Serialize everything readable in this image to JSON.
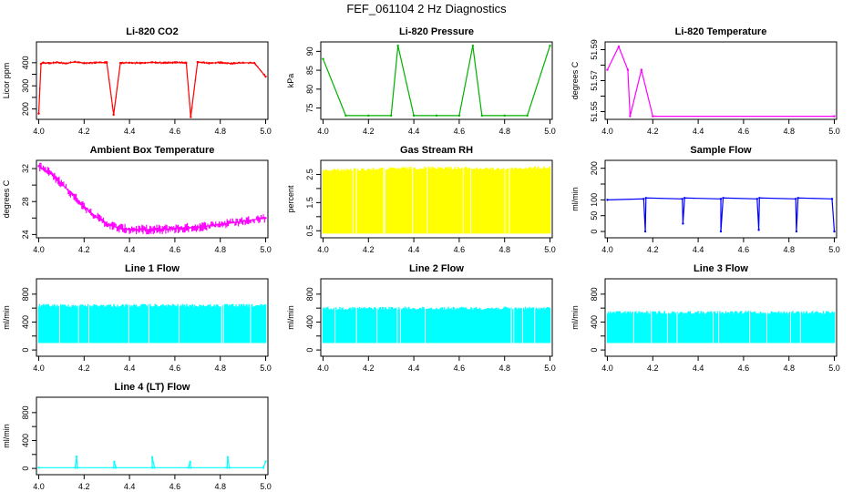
{
  "figure_title": "FEF_061104  2 Hz Diagnostics",
  "chart_data": [
    {
      "type": "line",
      "title": "Li-820 CO2",
      "xlabel": "",
      "ylabel": "Licor ppm",
      "xlim": [
        3.99,
        5.01
      ],
      "ylim": [
        155,
        490
      ],
      "x_ticks": [
        "4.0",
        "4.2",
        "4.4",
        "4.6",
        "4.8",
        "5.0"
      ],
      "y_ticks": [
        200,
        250,
        300,
        350,
        400
      ],
      "y_tick_labels": [
        "200",
        "",
        "300",
        "",
        "400"
      ],
      "color": "#ff0000",
      "series": [
        {
          "x": [
            4.0,
            4.01,
            4.02,
            4.05,
            4.08,
            4.12,
            4.16,
            4.2,
            4.25,
            4.3,
            4.33,
            4.36,
            4.4,
            4.45,
            4.5,
            4.55,
            4.6,
            4.65,
            4.67,
            4.7,
            4.75,
            4.8,
            4.85,
            4.9,
            4.95,
            5.0
          ],
          "y": [
            180,
            395,
            400,
            398,
            402,
            397,
            404,
            398,
            400,
            401,
            175,
            399,
            400,
            398,
            402,
            399,
            401,
            400,
            165,
            403,
            398,
            401,
            397,
            400,
            399,
            340
          ]
        }
      ]
    },
    {
      "type": "line",
      "title": "Li-820 Pressure",
      "xlabel": "",
      "ylabel": "kPa",
      "xlim": [
        3.99,
        5.01
      ],
      "ylim": [
        72,
        92.5
      ],
      "x_ticks": [
        "4.0",
        "4.2",
        "4.4",
        "4.6",
        "4.8",
        "5.0"
      ],
      "y_ticks": [
        75,
        80,
        85,
        90
      ],
      "y_tick_labels": [
        "75",
        "80",
        "85",
        "90"
      ],
      "color": "#00b000",
      "series": [
        {
          "x": [
            4.0,
            4.1,
            4.2,
            4.3,
            4.33,
            4.4,
            4.5,
            4.6,
            4.66,
            4.7,
            4.8,
            4.9,
            5.0
          ],
          "y": [
            88,
            73,
            73,
            73,
            91.5,
            73,
            73,
            73,
            91.5,
            73,
            73,
            73,
            91.5
          ]
        }
      ]
    },
    {
      "type": "line",
      "title": "Li-820 Temperature",
      "xlabel": "",
      "ylabel": "degrees C",
      "xlim": [
        3.99,
        5.01
      ],
      "ylim": [
        51.545,
        51.595
      ],
      "x_ticks": [
        "4.0",
        "4.2",
        "4.4",
        "4.6",
        "4.8",
        "5.0"
      ],
      "y_ticks": [
        51.55,
        51.56,
        51.57,
        51.58,
        51.59
      ],
      "y_tick_labels": [
        "51.55",
        "",
        "51.57",
        "",
        "51.59"
      ],
      "color": "#ff00ff",
      "series": [
        {
          "x": [
            4.0,
            4.05,
            4.09,
            4.1,
            4.15,
            4.2,
            5.0
          ],
          "y": [
            51.577,
            51.592,
            51.577,
            51.547,
            51.577,
            51.547,
            51.547
          ]
        }
      ]
    },
    {
      "type": "line",
      "title": "Ambient Box Temperature",
      "xlabel": "",
      "ylabel": "degrees C",
      "xlim": [
        3.99,
        5.01
      ],
      "ylim": [
        23.6,
        33.0
      ],
      "x_ticks": [
        "4.0",
        "4.2",
        "4.4",
        "4.6",
        "4.8",
        "5.0"
      ],
      "y_ticks": [
        24,
        26,
        28,
        30,
        32
      ],
      "y_tick_labels": [
        "24",
        "",
        "28",
        "",
        "32"
      ],
      "color": "#ff00ff",
      "series": [
        {
          "x": [
            4.0,
            4.05,
            4.1,
            4.15,
            4.2,
            4.25,
            4.3,
            4.35,
            4.4,
            4.5,
            4.6,
            4.7,
            4.8,
            4.9,
            5.0
          ],
          "y": [
            32.3,
            31.5,
            30.2,
            28.8,
            27.4,
            26.2,
            25.3,
            24.8,
            24.6,
            24.6,
            24.7,
            24.9,
            25.2,
            25.6,
            26.0
          ]
        }
      ]
    },
    {
      "type": "line",
      "title": "Gas Stream RH",
      "xlabel": "",
      "ylabel": "percent",
      "xlim": [
        3.99,
        5.01
      ],
      "ylim": [
        0.25,
        3.0
      ],
      "x_ticks": [
        "4.0",
        "4.2",
        "4.4",
        "4.6",
        "4.8",
        "5.0"
      ],
      "y_ticks": [
        0.5,
        1.0,
        1.5,
        2.0,
        2.5
      ],
      "y_tick_labels": [
        "0.5",
        "",
        "1.5",
        "",
        "2.5"
      ],
      "color": "#ffff00",
      "series": [
        {
          "x": [
            4.0,
            4.25,
            4.5,
            4.75,
            5.0
          ],
          "y": [
            2.7,
            2.75,
            2.8,
            2.75,
            2.8
          ],
          "y_min": 0.4
        }
      ]
    },
    {
      "type": "line",
      "title": "Sample Flow",
      "xlabel": "",
      "ylabel": "ml/min",
      "xlim": [
        3.99,
        5.01
      ],
      "ylim": [
        -20,
        225
      ],
      "x_ticks": [
        "4.0",
        "4.2",
        "4.4",
        "4.6",
        "4.8",
        "5.0"
      ],
      "y_ticks": [
        0,
        50,
        100,
        150,
        200
      ],
      "y_tick_labels": [
        "0",
        "50",
        "100",
        "",
        "200"
      ],
      "color": "#0000ff",
      "series": [
        {
          "x": [
            4.0,
            4.16,
            4.167,
            4.17,
            4.33,
            4.333,
            4.34,
            4.5,
            4.5,
            4.51,
            4.66,
            4.667,
            4.67,
            4.83,
            4.833,
            4.84,
            4.99,
            5.0
          ],
          "y": [
            100,
            103,
            0,
            106,
            103,
            25,
            106,
            103,
            0,
            106,
            103,
            5,
            106,
            103,
            0,
            106,
            103,
            0
          ]
        }
      ]
    },
    {
      "type": "line",
      "title": "Line 1 Flow",
      "xlabel": "",
      "ylabel": "ml/min",
      "xlim": [
        3.99,
        5.01
      ],
      "ylim": [
        -90,
        1020
      ],
      "x_ticks": [
        "4.0",
        "4.2",
        "4.4",
        "4.6",
        "4.8",
        "5.0"
      ],
      "y_ticks": [
        0,
        200,
        400,
        600,
        800
      ],
      "y_tick_labels": [
        "0",
        "",
        "400",
        "",
        "800"
      ],
      "color": "#00ffff",
      "series": [
        {
          "x": [
            4.0,
            5.0
          ],
          "y": [
            660,
            660
          ],
          "y_min": 100
        }
      ]
    },
    {
      "type": "line",
      "title": "Line 2 Flow",
      "xlabel": "",
      "ylabel": "ml/min",
      "xlim": [
        3.99,
        5.01
      ],
      "ylim": [
        -90,
        1020
      ],
      "x_ticks": [
        "4.0",
        "4.2",
        "4.4",
        "4.6",
        "4.8",
        "5.0"
      ],
      "y_ticks": [
        0,
        200,
        400,
        600,
        800
      ],
      "y_tick_labels": [
        "0",
        "",
        "400",
        "",
        "800"
      ],
      "color": "#00ffff",
      "series": [
        {
          "x": [
            4.0,
            5.0
          ],
          "y": [
            620,
            620
          ],
          "y_min": 100
        }
      ]
    },
    {
      "type": "line",
      "title": "Line 3 Flow",
      "xlabel": "",
      "ylabel": "ml/min",
      "xlim": [
        3.99,
        5.01
      ],
      "ylim": [
        -90,
        1020
      ],
      "x_ticks": [
        "4.0",
        "4.2",
        "4.4",
        "4.6",
        "4.8",
        "5.0"
      ],
      "y_ticks": [
        0,
        200,
        400,
        600,
        800
      ],
      "y_tick_labels": [
        "0",
        "",
        "400",
        "",
        "800"
      ],
      "color": "#00ffff",
      "series": [
        {
          "x": [
            4.0,
            5.0
          ],
          "y": [
            560,
            560
          ],
          "y_min": 100
        }
      ]
    },
    {
      "type": "line",
      "title": "Line 4 (LT) Flow",
      "xlabel": "",
      "ylabel": "ml/min",
      "xlim": [
        3.99,
        5.01
      ],
      "ylim": [
        -90,
        1020
      ],
      "x_ticks": [
        "4.0",
        "4.2",
        "4.4",
        "4.6",
        "4.8",
        "5.0"
      ],
      "y_ticks": [
        0,
        200,
        400,
        600,
        800
      ],
      "y_tick_labels": [
        "0",
        "",
        "400",
        "",
        "800"
      ],
      "color": "#00ffff",
      "series": [
        {
          "x": [
            4.0,
            4.16,
            4.167,
            4.17,
            4.33,
            4.333,
            4.34,
            4.5,
            4.5,
            4.51,
            4.66,
            4.667,
            4.67,
            4.83,
            4.833,
            4.84,
            4.99,
            5.0
          ],
          "y": [
            10,
            10,
            170,
            10,
            10,
            95,
            10,
            10,
            160,
            10,
            10,
            95,
            10,
            10,
            160,
            10,
            10,
            100
          ]
        }
      ]
    }
  ]
}
